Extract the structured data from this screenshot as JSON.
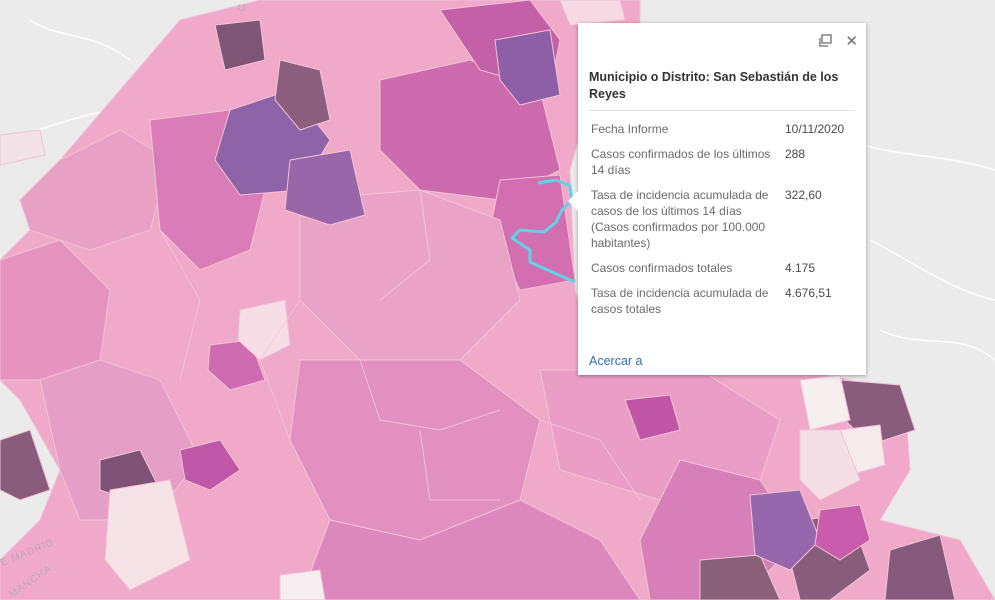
{
  "map": {
    "base_labels": [
      "E MADRID",
      "MANCHA",
      "C"
    ],
    "colors": {
      "background": "#ebebeb",
      "light_pink": "#f2b3cb",
      "pink": "#e89cc1",
      "medium_pink": "#d876b6",
      "magenta": "#c85eaa",
      "purple": "#8e5da8",
      "dark_mauve": "#8a5c7b",
      "pale": "#f7e9ea",
      "highlight_outline": "#5fd3e6"
    }
  },
  "popup": {
    "title": "Municipio o Distrito: San Sebastián de los Reyes",
    "rows": [
      {
        "label": "Fecha Informe",
        "value": "10/11/2020"
      },
      {
        "label": "Casos confirmados de los últimos 14 días",
        "value": "288"
      },
      {
        "label": "Tasa de incidencia acumulada de casos de los últimos 14 días (Casos confirmados por 100.000 habitantes)",
        "value": "322,60"
      },
      {
        "label": "Casos confirmados totales",
        "value": "4.175"
      },
      {
        "label": "Tasa de incidencia acumulada de casos totales",
        "value": "4.676,51"
      }
    ],
    "zoom_link": "Acercar a"
  }
}
